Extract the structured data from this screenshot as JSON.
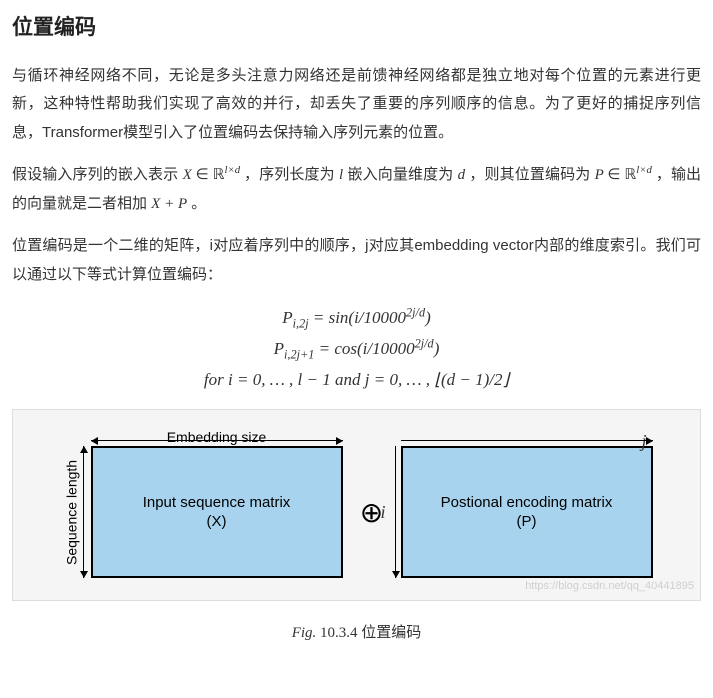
{
  "title": "位置编码",
  "paragraphs": {
    "p1": "与循环神经网络不同，无论是多头注意力网络还是前馈神经网络都是独立地对每个位置的元素进行更新，这种特性帮助我们实现了高效的并行，却丢失了重要的序列顺序的信息。为了更好的捕捉序列信息，Transformer模型引入了位置编码去保持输入序列元素的位置。",
    "p2_a": "假设输入序列的嵌入表示 ",
    "p2_b": "，序列长度为",
    "p2_c": "嵌入向量维度为",
    "p2_d": "，则其位置编码为 ",
    "p2_e": " ，输出的向量就是二者相加 ",
    "p2_f": "。",
    "p3": "位置编码是一个二维的矩阵，i对应着序列中的顺序，j对应其embedding vector内部的维度索引。我们可以通过以下等式计算位置编码："
  },
  "inline_math": {
    "X": "X",
    "in": "∈",
    "R": "ℝ",
    "ld": "l×d",
    "l": "l",
    "d": "d",
    "P": "P",
    "XP": "X + P"
  },
  "equations": {
    "e1_a": "P",
    "e1_sub": "i,2j",
    "e1_b": " = sin(i/10000",
    "e1_sup": "2j/d",
    "e1_c": ")",
    "e2_a": "P",
    "e2_sub": "i,2j+1",
    "e2_b": " = cos(i/10000",
    "e2_sup": "2j/d",
    "e2_c": ")",
    "e3": "for i = 0, … , l − 1 and j = 0, … , ⌊(d − 1)/2⌋"
  },
  "figure": {
    "bg_color": "#f5f5f5",
    "border_color": "#dddddd",
    "matrix_fill": "#a8d3ee",
    "matrix_border": "#000000",
    "matrix_w": 252,
    "matrix_h": 132,
    "left": {
      "top_label": "Embedding size",
      "side_label": "Sequence length",
      "text_line1": "Input sequence matrix",
      "text_line2": "(X)"
    },
    "op": "⊕",
    "right": {
      "top_label": "j",
      "side_label": "i",
      "text_line1": "Postional encoding matrix",
      "text_line2": "(P)"
    },
    "caption_fig": "Fig.",
    "caption_num": " 10.3.4 ",
    "caption_txt": "位置编码",
    "watermark": "https://blog.csdn.net/qq_40441895"
  }
}
